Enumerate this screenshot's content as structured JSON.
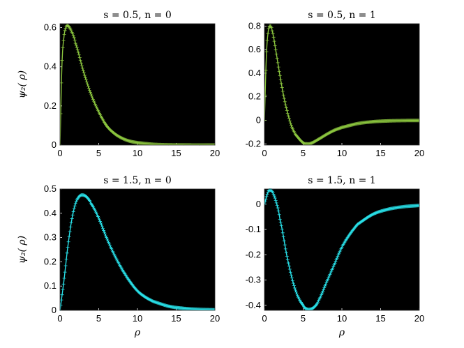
{
  "colors": {
    "background": "#ffffff",
    "axes_bg": "#000000",
    "green": "#8cc63f",
    "cyan": "#29e0e8"
  },
  "chart_data": [
    {
      "type": "line",
      "title": "s = 0.5, n = 0",
      "xlabel": "",
      "ylabel": "ψ₂( ρ)",
      "xlim": [
        0,
        20
      ],
      "ylim": [
        0,
        0.62
      ],
      "xticks": [
        "0",
        "5",
        "10",
        "15",
        "20"
      ],
      "yticks": [
        "0",
        "0.2",
        "0.4",
        "0.6"
      ],
      "yticks_values": [
        0,
        0.2,
        0.4,
        0.6
      ],
      "color": "#8cc63f",
      "marker": "+",
      "x": [
        0,
        0.25,
        0.5,
        0.75,
        1,
        1.5,
        2,
        3,
        4,
        5,
        6,
        7,
        8,
        9,
        10,
        12,
        14,
        16,
        18,
        20
      ],
      "y": [
        0,
        0.41,
        0.55,
        0.6,
        0.61,
        0.58,
        0.52,
        0.38,
        0.26,
        0.17,
        0.1,
        0.06,
        0.035,
        0.02,
        0.012,
        0.004,
        0.001,
        0.0004,
        0.0001,
        0
      ]
    },
    {
      "type": "line",
      "title": "s = 0.5, n = 1",
      "xlabel": "",
      "ylabel": "",
      "xlim": [
        0,
        20
      ],
      "ylim": [
        -0.21,
        0.82
      ],
      "xticks": [
        "0",
        "5",
        "10",
        "15",
        "20"
      ],
      "yticks": [
        "-0.2",
        "0",
        "0.2",
        "0.4",
        "0.6",
        "0.8"
      ],
      "yticks_values": [
        -0.2,
        0,
        0.2,
        0.4,
        0.6,
        0.8
      ],
      "color": "#8cc63f",
      "marker": "+",
      "x": [
        0,
        0.25,
        0.5,
        0.75,
        1,
        1.5,
        2,
        2.5,
        3,
        3.5,
        4,
        5,
        5.5,
        6,
        7,
        8,
        9,
        10,
        12,
        14,
        16,
        18,
        20
      ],
      "y": [
        0,
        0.55,
        0.76,
        0.8,
        0.76,
        0.58,
        0.38,
        0.2,
        0.06,
        -0.05,
        -0.12,
        -0.19,
        -0.2,
        -0.195,
        -0.16,
        -0.12,
        -0.085,
        -0.06,
        -0.028,
        -0.012,
        -0.005,
        -0.002,
        -0.001
      ]
    },
    {
      "type": "line",
      "title": "s = 1.5, n = 0",
      "xlabel": "ρ",
      "ylabel": "ψ₂( ρ)",
      "xlim": [
        0,
        20
      ],
      "ylim": [
        0,
        0.5
      ],
      "xticks": [
        "0",
        "5",
        "10",
        "15",
        "20"
      ],
      "yticks": [
        "0",
        "0.1",
        "0.2",
        "0.3",
        "0.4",
        "0.5"
      ],
      "yticks_values": [
        0,
        0.1,
        0.2,
        0.3,
        0.4,
        0.5
      ],
      "color": "#29e0e8",
      "marker": "+",
      "x": [
        0,
        0.5,
        1,
        1.5,
        2,
        2.5,
        3,
        3.5,
        4,
        5,
        6,
        7,
        8,
        9,
        10,
        11,
        12,
        14,
        16,
        18,
        20
      ],
      "y": [
        0,
        0.12,
        0.26,
        0.37,
        0.44,
        0.47,
        0.475,
        0.465,
        0.44,
        0.38,
        0.3,
        0.23,
        0.17,
        0.12,
        0.08,
        0.055,
        0.037,
        0.017,
        0.008,
        0.004,
        0.002
      ]
    },
    {
      "type": "line",
      "title": "s = 1.5, n = 1",
      "xlabel": "ρ",
      "ylabel": "",
      "xlim": [
        0,
        20
      ],
      "ylim": [
        -0.42,
        0.06
      ],
      "xticks": [
        "0",
        "5",
        "10",
        "15",
        "20"
      ],
      "yticks": [
        "-0.4",
        "-0.3",
        "-0.2",
        "-0.1",
        "0"
      ],
      "yticks_values": [
        -0.4,
        -0.3,
        -0.2,
        -0.1,
        0
      ],
      "color": "#29e0e8",
      "marker": "+",
      "x": [
        0,
        0.5,
        0.8,
        1,
        1.5,
        2,
        3,
        4,
        5,
        5.5,
        6,
        6.5,
        7,
        8,
        9,
        10,
        11,
        12,
        14,
        16,
        18,
        20
      ],
      "y": [
        0,
        0.05,
        0.055,
        0.05,
        0.01,
        -0.06,
        -0.22,
        -0.34,
        -0.4,
        -0.415,
        -0.415,
        -0.405,
        -0.38,
        -0.31,
        -0.24,
        -0.17,
        -0.12,
        -0.08,
        -0.04,
        -0.02,
        -0.01,
        -0.005
      ]
    }
  ]
}
